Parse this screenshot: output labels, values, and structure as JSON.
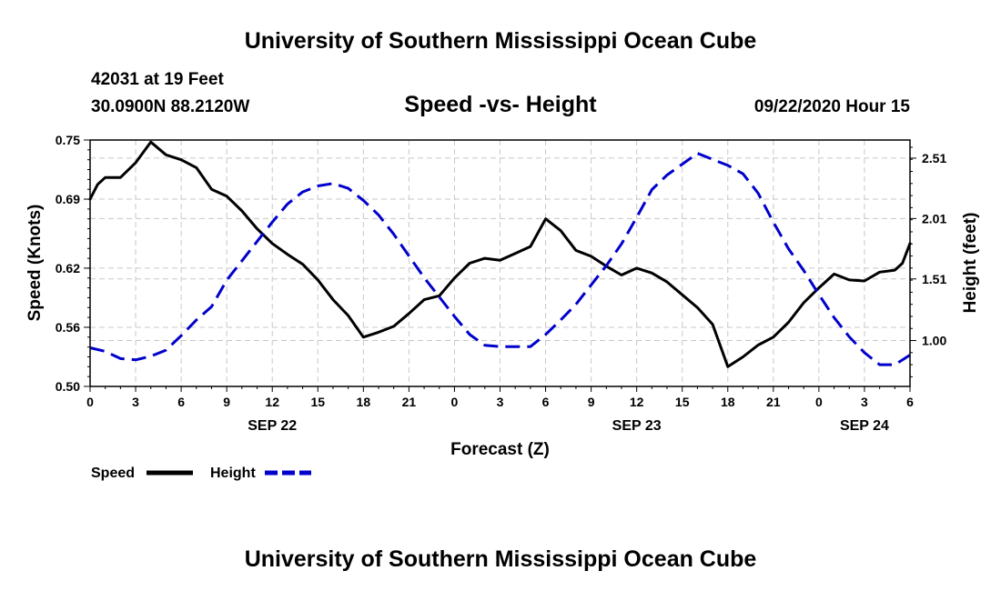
{
  "page": {
    "title_top": "University of Southern Mississippi Ocean Cube",
    "title_bottom": "University of Southern Mississippi Ocean Cube",
    "station": "42031 at 19 Feet",
    "coords": "30.0900N 88.2120W",
    "subtitle": "Speed -vs- Height",
    "datetime": "09/22/2020 Hour 15"
  },
  "chart_data": {
    "type": "line",
    "title": "Speed -vs- Height",
    "xlabel": "Forecast (Z)",
    "ylabel": "Speed (Knots)",
    "y2label": "Height (feet)",
    "xlim": [
      0,
      54
    ],
    "ylim": [
      0.5,
      0.75
    ],
    "y2lim": [
      0.62,
      2.66
    ],
    "grid": true,
    "x_tick_values": [
      0,
      3,
      6,
      9,
      12,
      15,
      18,
      21,
      24,
      27,
      30,
      33,
      36,
      39,
      42,
      45,
      48,
      51,
      54
    ],
    "x_tick_labels": [
      "0",
      "3",
      "6",
      "9",
      "12",
      "15",
      "18",
      "21",
      "0",
      "3",
      "6",
      "9",
      "12",
      "15",
      "18",
      "21",
      "0",
      "3",
      "6"
    ],
    "date_labels": [
      {
        "x": 12,
        "label": "SEP 22"
      },
      {
        "x": 36,
        "label": "SEP 23"
      },
      {
        "x": 51,
        "label": "SEP 24"
      }
    ],
    "y_ticks": [
      0.5,
      0.56,
      0.62,
      0.69,
      0.75
    ],
    "y_tick_labels": [
      "0.50",
      "0.56",
      "0.62",
      "0.69",
      "0.75"
    ],
    "y2_ticks": [
      1.0,
      1.51,
      2.01,
      2.51
    ],
    "y2_tick_labels": [
      "1.00",
      "1.51",
      "2.01",
      "2.51"
    ],
    "legend": [
      {
        "label": "Speed",
        "color": "#000000",
        "dash": "solid"
      },
      {
        "label": "Height",
        "color": "#0000cc",
        "dash": "dashed"
      }
    ],
    "series": [
      {
        "name": "Speed",
        "axis": "left",
        "color": "#000000",
        "x": [
          0,
          0.5,
          1,
          2,
          3,
          4,
          5,
          6,
          7,
          8,
          9,
          10,
          11,
          12,
          13,
          14,
          15,
          16,
          17,
          18,
          19,
          20,
          21,
          22,
          23,
          24,
          25,
          26,
          27,
          28,
          29,
          30,
          31,
          32,
          33,
          34,
          35,
          36,
          37,
          38,
          39,
          40,
          41,
          42,
          43,
          44,
          45,
          46,
          47,
          48,
          49,
          50,
          51,
          52,
          53,
          53.5,
          54
        ],
        "values": [
          0.69,
          0.705,
          0.712,
          0.712,
          0.727,
          0.748,
          0.735,
          0.73,
          0.722,
          0.7,
          0.693,
          0.678,
          0.66,
          0.645,
          0.634,
          0.624,
          0.608,
          0.588,
          0.572,
          0.55,
          0.555,
          0.561,
          0.574,
          0.588,
          0.592,
          0.61,
          0.625,
          0.63,
          0.628,
          0.635,
          0.642,
          0.67,
          0.658,
          0.638,
          0.632,
          0.622,
          0.613,
          0.62,
          0.615,
          0.606,
          0.593,
          0.58,
          0.563,
          0.52,
          0.53,
          0.542,
          0.55,
          0.565,
          0.585,
          0.6,
          0.614,
          0.608,
          0.607,
          0.616,
          0.618,
          0.625,
          0.645
        ]
      },
      {
        "name": "Height",
        "axis": "right",
        "color": "#0000cc",
        "x": [
          0,
          1,
          2,
          3,
          4,
          5,
          6,
          7,
          8,
          9,
          10,
          11,
          12,
          13,
          14,
          15,
          16,
          17,
          18,
          19,
          20,
          21,
          22,
          23,
          24,
          25,
          26,
          27,
          28,
          29,
          30,
          31,
          32,
          33,
          34,
          35,
          36,
          37,
          38,
          39,
          40,
          41,
          42,
          43,
          44,
          45,
          46,
          47,
          48,
          49,
          50,
          51,
          52,
          53,
          54
        ],
        "values": [
          0.94,
          0.91,
          0.85,
          0.84,
          0.87,
          0.92,
          1.04,
          1.17,
          1.28,
          1.5,
          1.66,
          1.82,
          1.98,
          2.13,
          2.23,
          2.28,
          2.3,
          2.26,
          2.16,
          2.04,
          1.88,
          1.7,
          1.52,
          1.36,
          1.2,
          1.05,
          0.96,
          0.95,
          0.95,
          0.95,
          1.05,
          1.17,
          1.3,
          1.46,
          1.62,
          1.8,
          2.02,
          2.25,
          2.37,
          2.46,
          2.55,
          2.5,
          2.45,
          2.38,
          2.22,
          1.98,
          1.76,
          1.58,
          1.38,
          1.19,
          1.03,
          0.9,
          0.8,
          0.8,
          0.88
        ]
      }
    ]
  }
}
